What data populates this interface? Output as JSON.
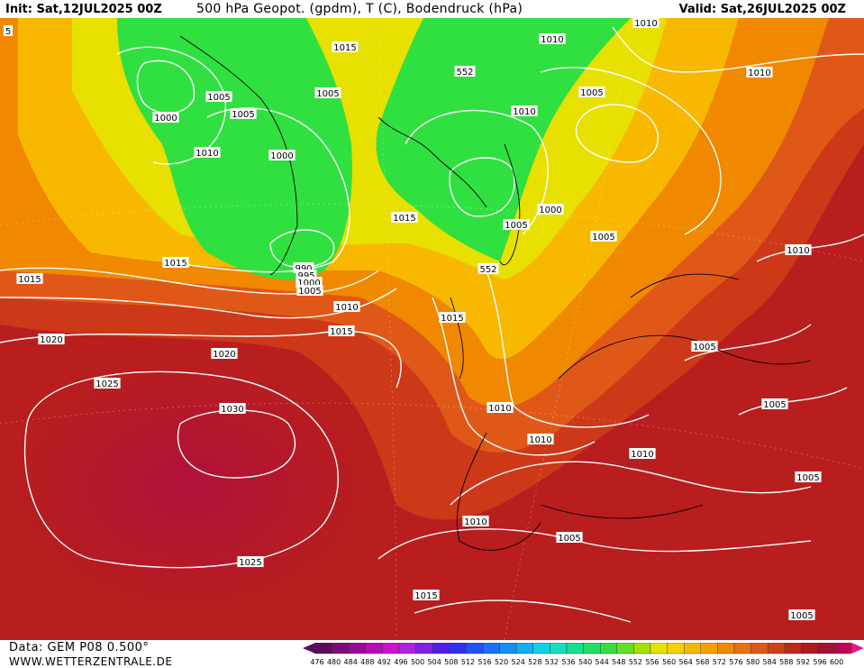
{
  "header": {
    "init": "Init: Sat,12JUL2025 00Z",
    "title": "500 hPa Geopot. (gpdm), T (C), Bodendruck (hPa)",
    "valid": "Valid: Sat,26JUL2025 00Z"
  },
  "footer": {
    "data_source": "Data: GEM P08 0.500°",
    "website": "WWW.WETTERZENTRALE.DE"
  },
  "color_scale": {
    "values": [
      476,
      480,
      484,
      488,
      492,
      496,
      500,
      504,
      508,
      512,
      516,
      520,
      524,
      528,
      532,
      536,
      540,
      544,
      548,
      552,
      556,
      560,
      564,
      568,
      572,
      576,
      580,
      584,
      588,
      592,
      596,
      600
    ],
    "colors": [
      "#5a0a5a",
      "#7a0a7a",
      "#9a0a9a",
      "#b80ab8",
      "#d010d0",
      "#b020e0",
      "#8020e8",
      "#5020e8",
      "#3030f0",
      "#2050f8",
      "#1870f8",
      "#1090f8",
      "#10b0f0",
      "#10d0e8",
      "#10e0c0",
      "#10e090",
      "#20e060",
      "#30e040",
      "#60e020",
      "#a0e000",
      "#e8e000",
      "#f8d000",
      "#f8b800",
      "#f8a000",
      "#f08800",
      "#e87010",
      "#e05818",
      "#d04018",
      "#c02818",
      "#b01820",
      "#a01030",
      "#c00050"
    ],
    "arrow_left_color": "#5a0a5a",
    "arrow_right_color": "#e01890"
  },
  "map_labels": [
    {
      "text": "1010"
    },
    {
      "text": "1005"
    },
    {
      "text": "1000"
    },
    {
      "text": "1005"
    },
    {
      "text": "1010"
    },
    {
      "text": "1015"
    },
    {
      "text": "1005"
    },
    {
      "text": "1000"
    },
    {
      "text": "990"
    },
    {
      "text": "995"
    },
    {
      "text": "1000"
    },
    {
      "text": "1005"
    },
    {
      "text": "1015"
    },
    {
      "text": "1010"
    },
    {
      "text": "1015"
    },
    {
      "text": "1010"
    },
    {
      "text": "1010"
    },
    {
      "text": "1005"
    },
    {
      "text": "1010"
    },
    {
      "text": "1005"
    },
    {
      "text": "1000"
    },
    {
      "text": "1005"
    },
    {
      "text": "1010"
    },
    {
      "text": "552"
    },
    {
      "text": "552"
    },
    {
      "text": "1015"
    },
    {
      "text": "1015"
    },
    {
      "text": "1020"
    },
    {
      "text": "1020"
    },
    {
      "text": "1025"
    },
    {
      "text": "1030"
    },
    {
      "text": "1025"
    },
    {
      "text": "1015"
    },
    {
      "text": "1010"
    },
    {
      "text": "1010"
    },
    {
      "text": "1010"
    },
    {
      "text": "1010"
    },
    {
      "text": "1005"
    },
    {
      "text": "1005"
    },
    {
      "text": "1005"
    },
    {
      "text": "1015"
    },
    {
      "text": "1005"
    },
    {
      "text": "1005"
    },
    {
      "text": "5"
    }
  ]
}
